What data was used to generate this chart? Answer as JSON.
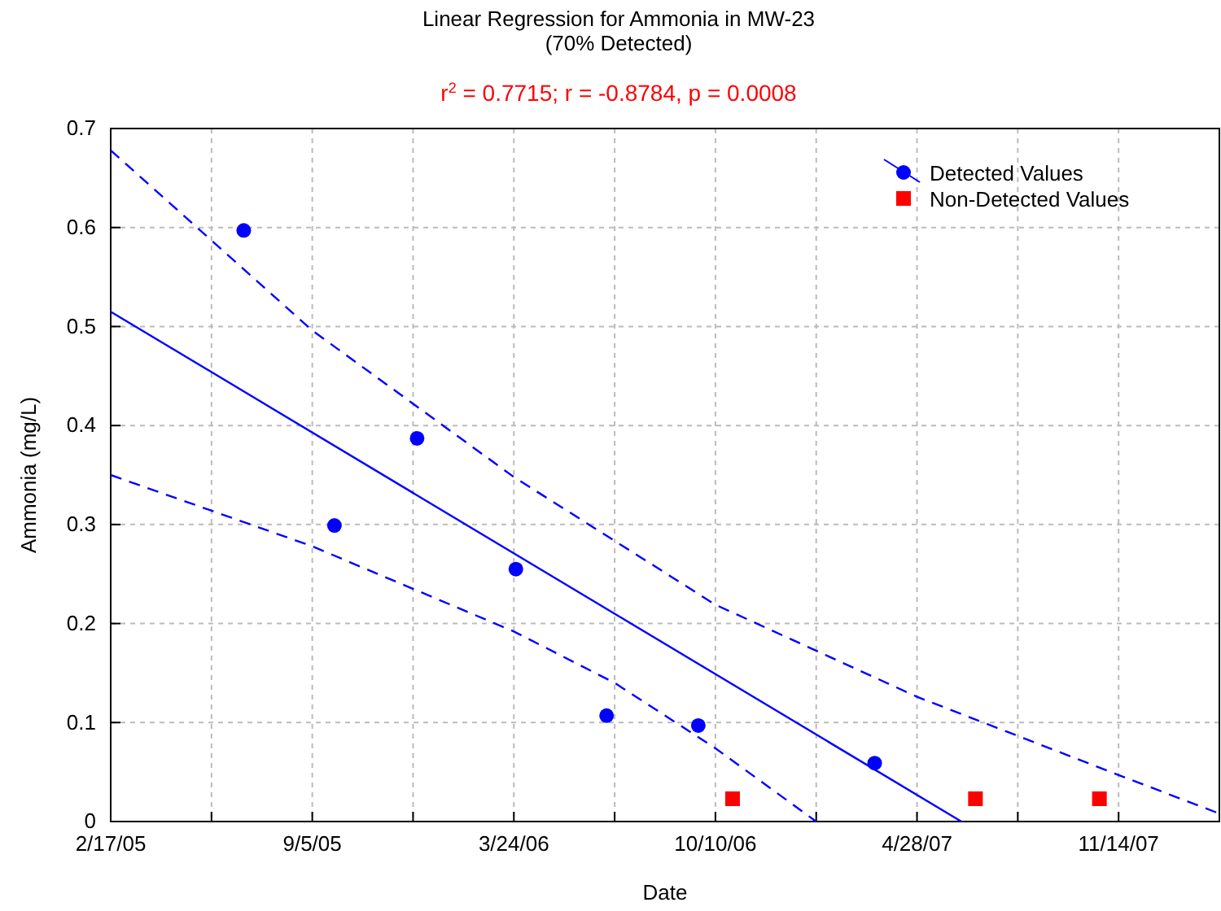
{
  "chart_data": {
    "type": "scatter",
    "title": "Linear Regression for Ammonia in MW-23",
    "subtitle": "(70% Detected)",
    "annotations": [
      "r$^{2}$ = 0.7715;  r = -0.8784, p = 0.0008"
    ],
    "xlabel": "Date",
    "ylabel": "Ammonia (mg/L)",
    "xlim": [
      "2005-02-17",
      "2008-02-22"
    ],
    "xticks": [
      {
        "value": "2005-02-17",
        "label": "2/17/05"
      },
      {
        "value": "2005-05-28",
        "label": null
      },
      {
        "value": "2005-09-05",
        "label": "9/5/05"
      },
      {
        "value": "2005-12-14",
        "label": null
      },
      {
        "value": "2006-03-24",
        "label": "3/24/06"
      },
      {
        "value": "2006-07-02",
        "label": null
      },
      {
        "value": "2006-10-10",
        "label": "10/10/06"
      },
      {
        "value": "2007-01-18",
        "label": null
      },
      {
        "value": "2007-04-28",
        "label": "4/28/07"
      },
      {
        "value": "2007-08-06",
        "label": null
      },
      {
        "value": "2007-11-14",
        "label": "11/14/07"
      }
    ],
    "ylim": [
      0,
      0.7
    ],
    "yticks": [
      0,
      0.1,
      0.2,
      0.3,
      0.4,
      0.5,
      0.6,
      0.7
    ],
    "grid": true,
    "legend": "top right",
    "series": [
      {
        "name": "Detected Values",
        "marker": "circle",
        "color": "#0000ff",
        "x": [
          "2005-06-29",
          "2005-09-27",
          "2005-12-18",
          "2006-03-26",
          "2006-06-24",
          "2006-09-23",
          "2007-03-17"
        ],
        "values": [
          0.597,
          0.299,
          0.387,
          0.255,
          0.107,
          0.097,
          0.059
        ]
      },
      {
        "name": "Non-Detected Values",
        "marker": "square",
        "color": "#ff0000",
        "x": [
          "2006-10-27",
          "2007-06-25",
          "2007-10-26"
        ],
        "values": [
          0.023,
          0.023,
          0.023
        ]
      },
      {
        "type": "line",
        "line_style": "solid",
        "color": "#0000ff",
        "x": [
          "2005-02-17",
          "2007-06-11"
        ],
        "values": [
          0.515,
          0
        ]
      },
      {
        "type": "line",
        "line_style": "dashed",
        "color": "#0000ff",
        "x": [
          "2005-02-17",
          "2005-09-05",
          "2006-03-24",
          "2006-10-10",
          "2007-04-28",
          "2007-11-14",
          "2008-02-22"
        ],
        "values": [
          0.678,
          0.496,
          0.348,
          0.219,
          0.126,
          0.047,
          0.008
        ]
      },
      {
        "type": "line",
        "line_style": "dashed",
        "color": "#0000ff",
        "x": [
          "2005-02-17",
          "2005-09-05",
          "2006-03-24",
          "2006-07-02",
          "2006-10-10",
          "2007-01-18"
        ],
        "values": [
          0.35,
          0.278,
          0.192,
          0.14,
          0.074,
          0
        ]
      }
    ]
  }
}
